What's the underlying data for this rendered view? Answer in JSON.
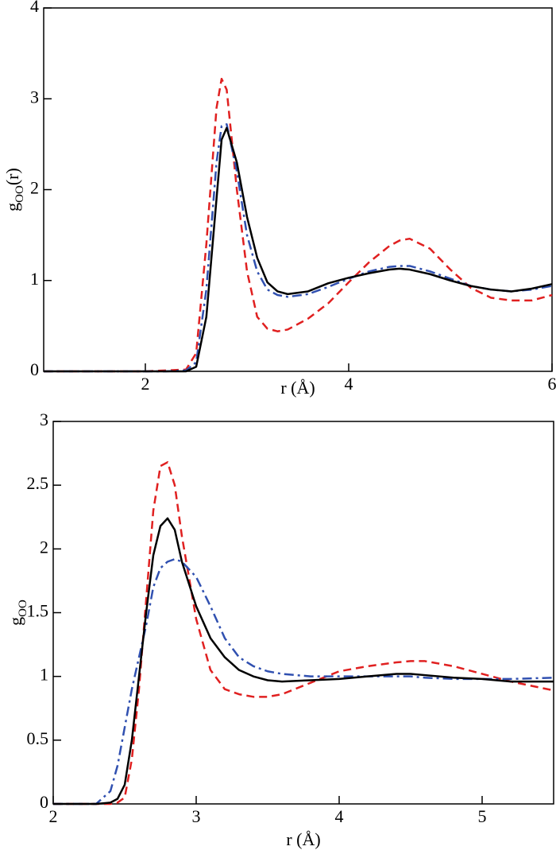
{
  "chart_data": [
    {
      "type": "line",
      "xlabel": "r (Å)",
      "ylabel": {
        "base": "g",
        "sub": "OO",
        "tail": "(r)"
      },
      "xlim": [
        1,
        6
      ],
      "ylim": [
        0,
        4
      ],
      "xticks": [
        2,
        4,
        6
      ],
      "yticks": [
        0,
        1,
        2,
        3,
        4
      ],
      "x": [
        1,
        1.5,
        2,
        2.2,
        2.4,
        2.5,
        2.6,
        2.7,
        2.75,
        2.8,
        2.9,
        3.0,
        3.1,
        3.2,
        3.3,
        3.4,
        3.6,
        3.8,
        4.0,
        4.2,
        4.4,
        4.5,
        4.6,
        4.8,
        5.0,
        5.2,
        5.4,
        5.6,
        5.8,
        6.0
      ],
      "series": [
        {
          "color": "#e02020",
          "dash": "10,6",
          "values": [
            0,
            0,
            0,
            0.01,
            0.02,
            0.2,
            1.4,
            2.9,
            3.22,
            3.1,
            2.0,
            1.1,
            0.6,
            0.47,
            0.44,
            0.46,
            0.58,
            0.75,
            0.98,
            1.2,
            1.38,
            1.44,
            1.46,
            1.35,
            1.12,
            0.92,
            0.81,
            0.78,
            0.78,
            0.84
          ]
        },
        {
          "color": "#3050b0",
          "dash": "12,5,3,5",
          "values": [
            0,
            0,
            0,
            0,
            0.01,
            0.1,
            0.9,
            2.3,
            2.7,
            2.72,
            2.2,
            1.5,
            1.1,
            0.9,
            0.84,
            0.82,
            0.85,
            0.93,
            1.02,
            1.1,
            1.15,
            1.16,
            1.16,
            1.1,
            1.02,
            0.94,
            0.9,
            0.88,
            0.9,
            0.94
          ]
        },
        {
          "color": "#000000",
          "dash": "none",
          "values": [
            0,
            0,
            0,
            0,
            0,
            0.05,
            0.6,
            1.9,
            2.55,
            2.68,
            2.3,
            1.7,
            1.25,
            0.98,
            0.88,
            0.85,
            0.88,
            0.97,
            1.03,
            1.08,
            1.12,
            1.13,
            1.12,
            1.07,
            1.0,
            0.94,
            0.9,
            0.88,
            0.91,
            0.96
          ]
        }
      ]
    },
    {
      "type": "line",
      "xlabel": "r (Å)",
      "ylabel": {
        "base": "g",
        "sub": "OO"
      },
      "xlim": [
        2,
        5.5
      ],
      "ylim": [
        0,
        3
      ],
      "xticks": [
        2,
        3,
        4,
        5
      ],
      "yticks": [
        0,
        0.5,
        1,
        1.5,
        2,
        2.5,
        3
      ],
      "x": [
        2,
        2.3,
        2.4,
        2.45,
        2.5,
        2.55,
        2.6,
        2.65,
        2.7,
        2.75,
        2.8,
        2.85,
        2.9,
        3.0,
        3.1,
        3.2,
        3.3,
        3.4,
        3.5,
        3.6,
        3.8,
        4.0,
        4.2,
        4.4,
        4.5,
        4.6,
        4.8,
        5.0,
        5.2,
        5.5
      ],
      "series": [
        {
          "color": "#e02020",
          "dash": "10,6",
          "values": [
            0,
            0,
            0,
            0.01,
            0.05,
            0.35,
            0.9,
            1.6,
            2.3,
            2.65,
            2.68,
            2.5,
            2.1,
            1.45,
            1.05,
            0.9,
            0.86,
            0.84,
            0.84,
            0.86,
            0.95,
            1.04,
            1.08,
            1.11,
            1.12,
            1.12,
            1.08,
            1.02,
            0.96,
            0.89
          ]
        },
        {
          "color": "#3050b0",
          "dash": "12,5,3,5",
          "values": [
            0,
            0,
            0.1,
            0.3,
            0.6,
            0.9,
            1.15,
            1.4,
            1.7,
            1.85,
            1.9,
            1.92,
            1.9,
            1.78,
            1.55,
            1.3,
            1.15,
            1.08,
            1.04,
            1.02,
            1.0,
            1.0,
            1.0,
            1.0,
            1.0,
            0.99,
            0.98,
            0.98,
            0.98,
            0.99
          ]
        },
        {
          "color": "#000000",
          "dash": "none",
          "values": [
            0,
            0,
            0.01,
            0.04,
            0.15,
            0.5,
            1.0,
            1.5,
            1.95,
            2.18,
            2.24,
            2.15,
            1.9,
            1.55,
            1.3,
            1.15,
            1.05,
            1.0,
            0.97,
            0.96,
            0.97,
            0.98,
            1.0,
            1.02,
            1.02,
            1.01,
            0.99,
            0.98,
            0.96,
            0.96
          ]
        }
      ]
    }
  ]
}
